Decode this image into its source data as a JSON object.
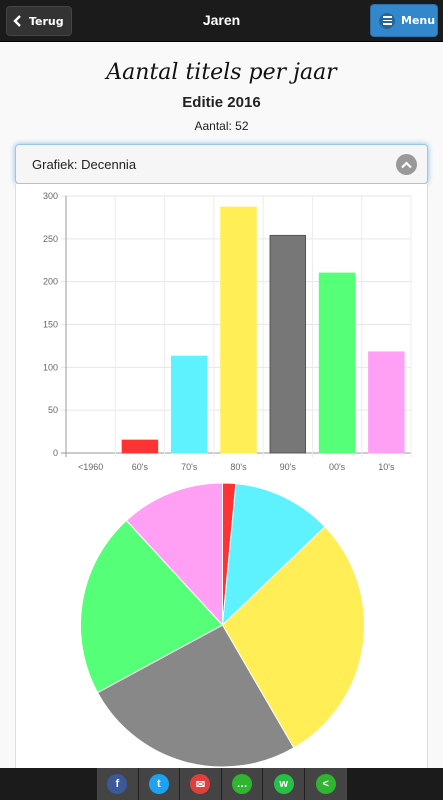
{
  "header": {
    "back_label": "Terug",
    "title": "Jaren",
    "menu_label": "Menu"
  },
  "main": {
    "headline": "Aantal titels per jaar",
    "edition": "Editie 2016",
    "count": "Aantal: 52"
  },
  "selector": {
    "value": "Grafiek: Decennia"
  },
  "share": {
    "items": [
      {
        "name": "facebook-icon",
        "glyph": "f",
        "color": "#3b5998"
      },
      {
        "name": "twitter-icon",
        "glyph": "t",
        "color": "#1da1f2"
      },
      {
        "name": "email-icon",
        "glyph": "✉",
        "color": "#e0403c"
      },
      {
        "name": "sms-icon",
        "glyph": "…",
        "color": "#2fb52f"
      },
      {
        "name": "whatsapp-icon",
        "glyph": "w",
        "color": "#25c045"
      },
      {
        "name": "share-icon",
        "glyph": "<",
        "color": "#2fb52f"
      }
    ]
  },
  "chart_data": [
    {
      "type": "bar",
      "categories": [
        "<1960",
        "60's",
        "70's",
        "80's",
        "90's",
        "00's",
        "10's"
      ],
      "values": [
        0,
        15,
        113,
        287,
        254,
        210,
        118
      ],
      "colors": [
        "#ff3333",
        "#ff3333",
        "#5ef2ff",
        "#ffee55",
        "#777777",
        "#55ff77",
        "#ffa0f5"
      ],
      "ylim": [
        0,
        300
      ],
      "yticks": [
        0,
        50,
        100,
        150,
        200,
        250,
        300
      ],
      "grid": true,
      "legend": "none"
    },
    {
      "type": "pie",
      "categories": [
        "<1960",
        "60's",
        "70's",
        "80's",
        "90's",
        "00's",
        "10's"
      ],
      "values": [
        0,
        15,
        113,
        287,
        254,
        210,
        118
      ],
      "colors": [
        "#ff3333",
        "#ff3333",
        "#5ef2ff",
        "#ffee55",
        "#888888",
        "#55ff77",
        "#ffa0f5"
      ]
    }
  ]
}
